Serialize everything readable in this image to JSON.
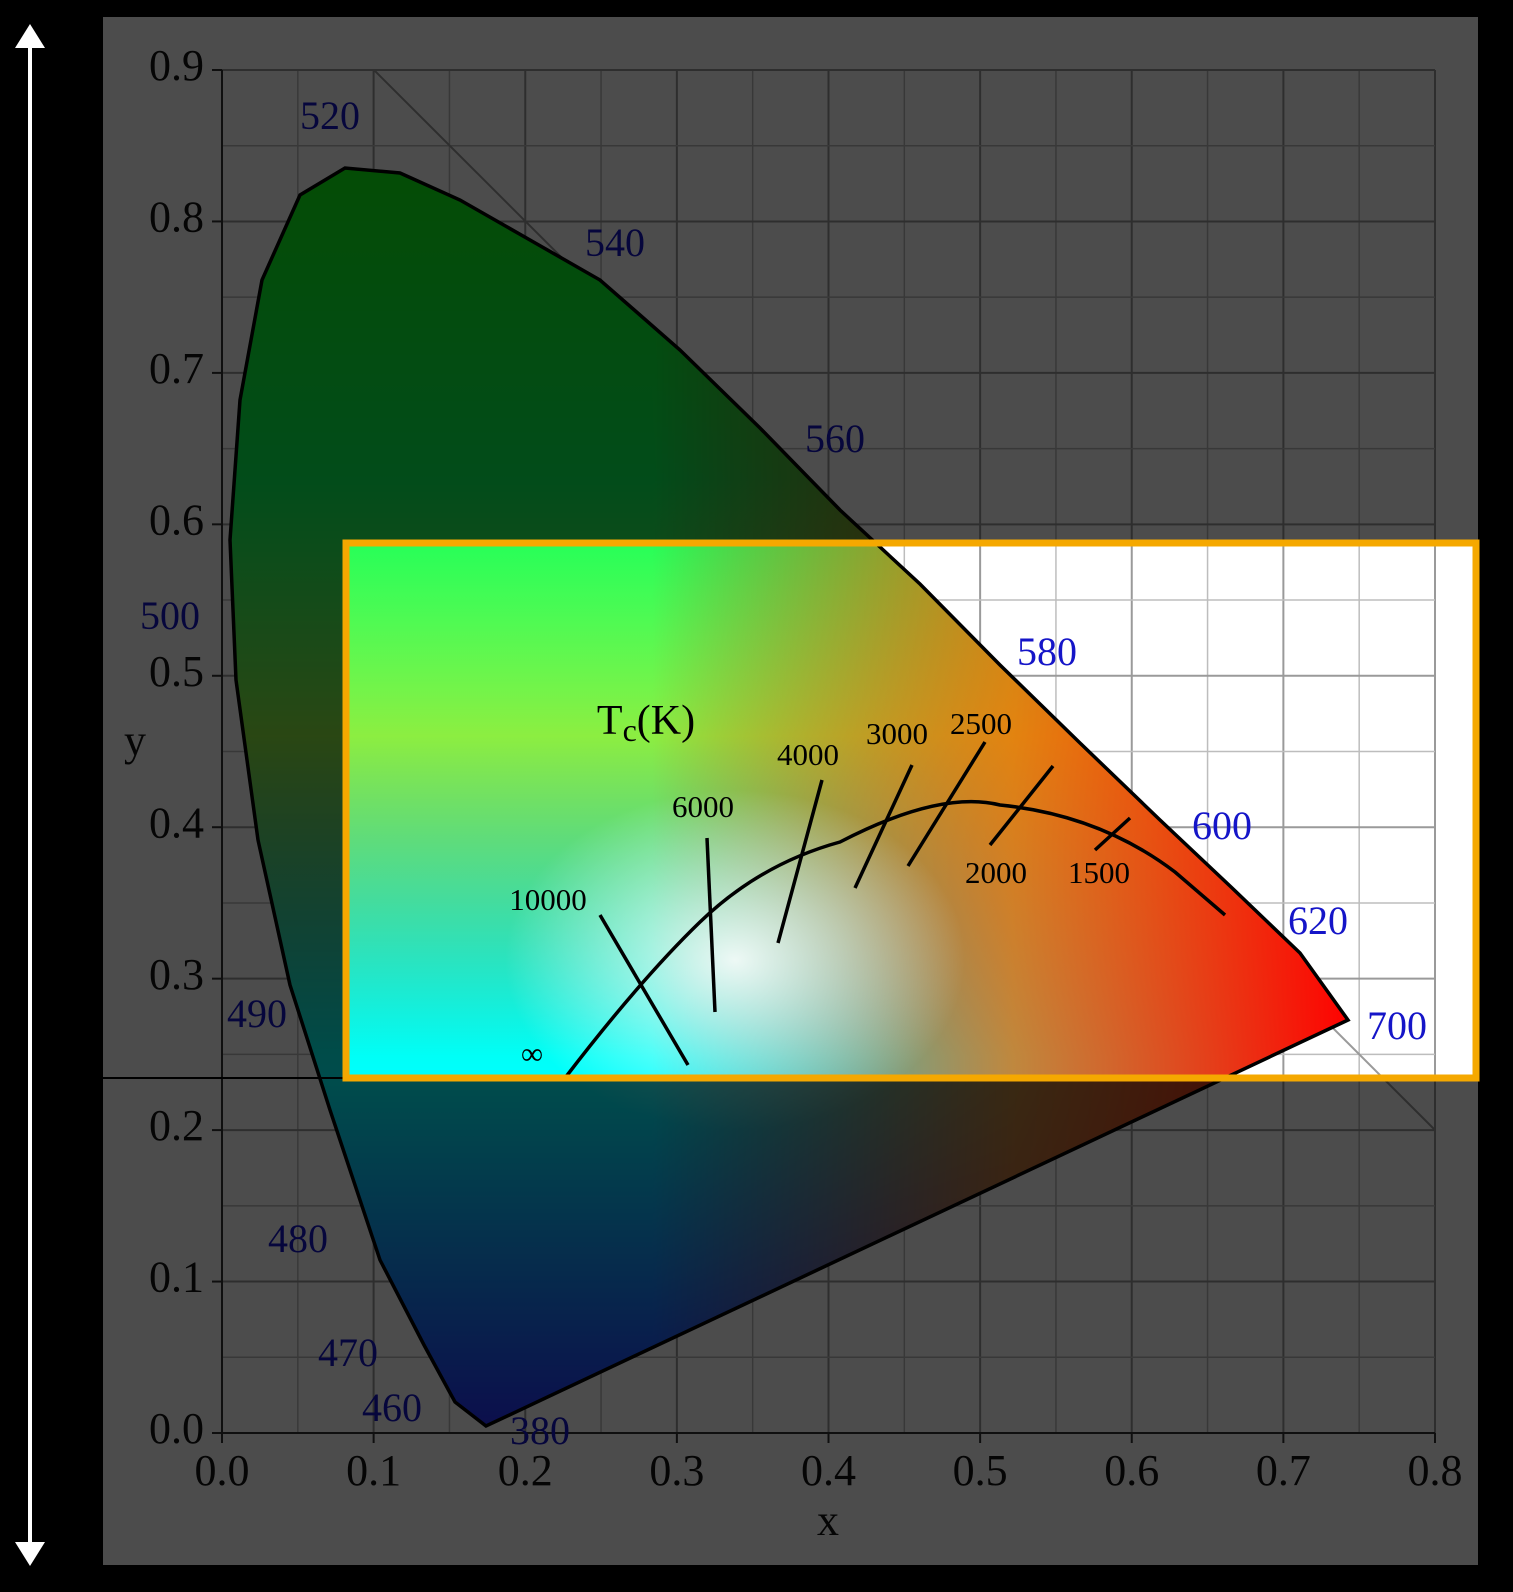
{
  "chart_data": {
    "type": "chromaticity",
    "xlabel": "x",
    "ylabel": "y",
    "xlim": [
      0,
      0.8
    ],
    "ylim": [
      0,
      0.9
    ],
    "xticks": [
      {
        "value": 0,
        "label": "0.0"
      },
      0.1,
      0.2,
      0.3,
      0.4,
      0.5,
      0.6,
      0.7,
      0.8
    ],
    "yticks": [
      {
        "value": 0,
        "label": "0.0"
      },
      0.1,
      0.2,
      0.3,
      0.4,
      0.5,
      0.6,
      0.7,
      0.8,
      0.9
    ],
    "grid": true,
    "wavelength_labels": [
      "520",
      "540",
      "560",
      "580",
      "600",
      "620",
      "700",
      "500",
      "490",
      "480",
      "470",
      "460",
      "380"
    ],
    "temperature_labels": [
      "10000",
      "6000",
      "4000",
      "3000",
      "2500",
      "2000",
      "1500",
      "∞"
    ],
    "tc_label": {
      "main": "T",
      "sub": "c",
      "unit": "(K)"
    }
  }
}
